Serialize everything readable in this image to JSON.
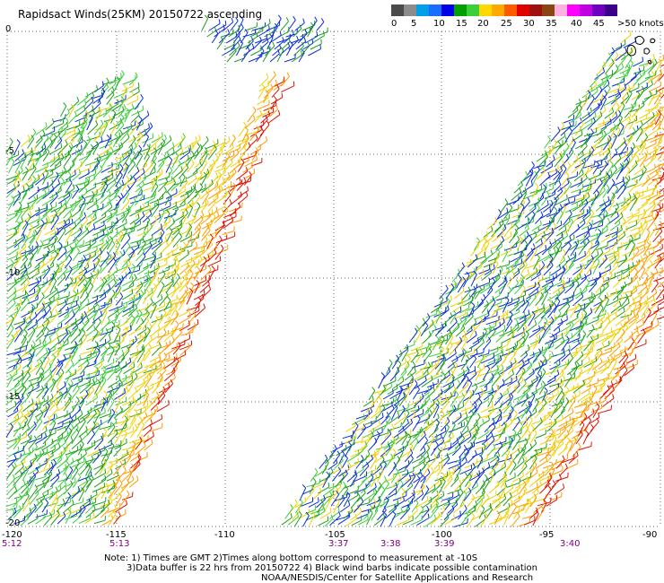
{
  "title": "Rapidsact Winds(25KM) 20150722 ascending",
  "colorbar": {
    "colors": [
      "#4a4a4a",
      "#8c8c8c",
      "#00a0e8",
      "#1a6eff",
      "#0000e6",
      "#00a000",
      "#3ccf3c",
      "#ffd800",
      "#ffaa00",
      "#ff5a00",
      "#e00000",
      "#a01010",
      "#8b4513",
      "#ffb0e0",
      "#ff00ff",
      "#c000e0",
      "#7000c0",
      "#3a0088"
    ],
    "labels": [
      "0",
      "5",
      "10",
      "15",
      "20",
      "25",
      "30",
      "35",
      "40",
      "45",
      ">50 knots"
    ]
  },
  "lat_labels": [
    "0",
    "-5",
    "-10",
    "-15",
    "-20"
  ],
  "lon_labels": [
    "-120",
    "-115",
    "-110",
    "-105",
    "-100",
    "-95",
    "-90"
  ],
  "time_labels": [
    "5:12",
    "5:13",
    "3:37",
    "3:38",
    "3:39",
    "3:40"
  ],
  "notes": [
    "Note: 1) Times are GMT 2)Times along bottom correspond to measurement at -10S",
    "3)Data buffer is 22 hrs from 20150722 4) Black wind barbs indicate possible contamination",
    "NOAA/NESDIS/Center for Satellite Applications and Research"
  ]
}
